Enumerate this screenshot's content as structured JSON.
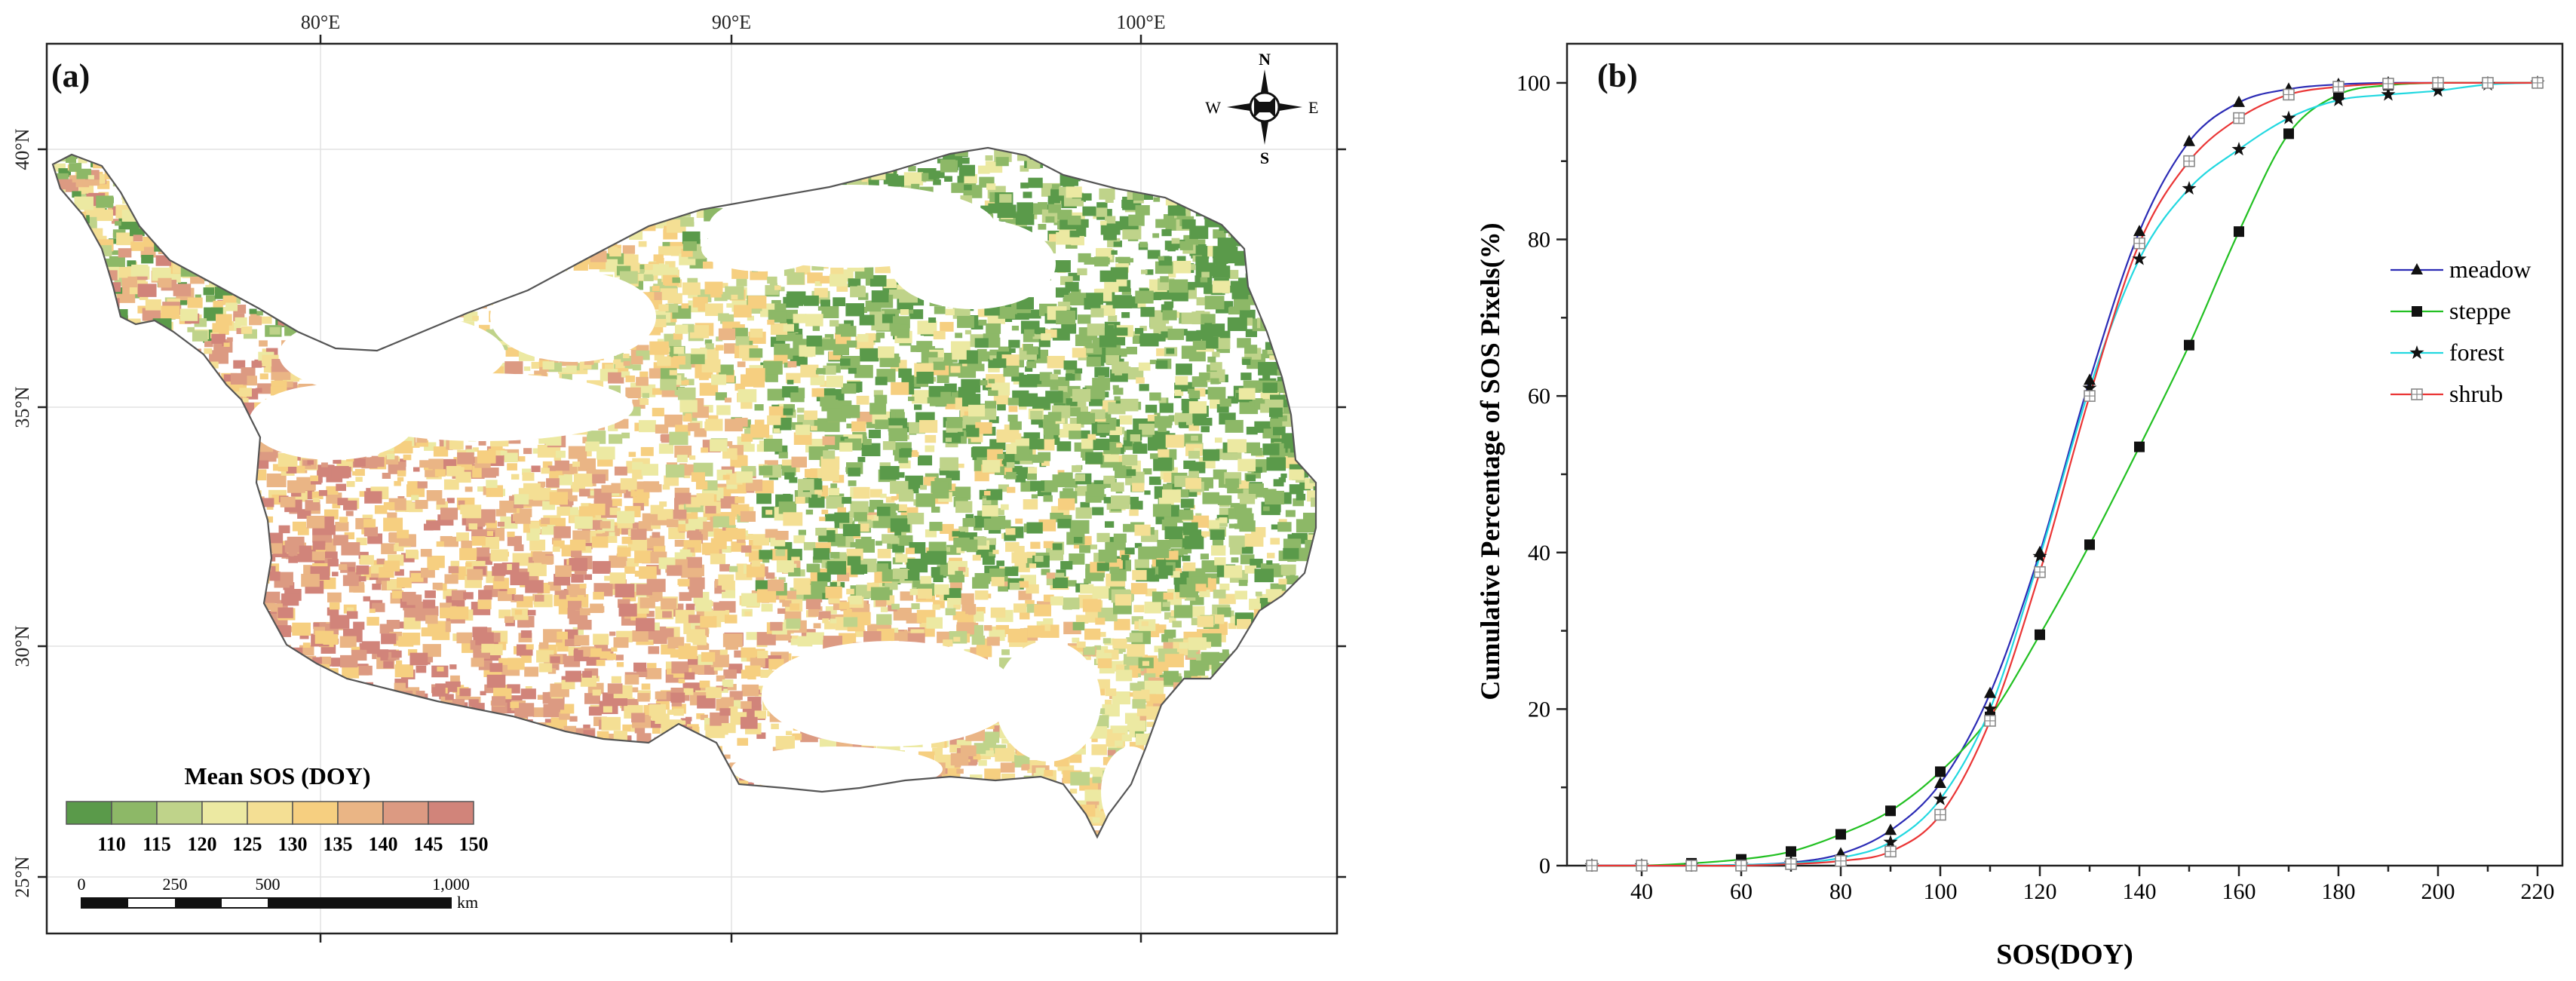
{
  "panel_a": {
    "panel_label": "(a)",
    "lon_labels": [
      "80°E",
      "90°E",
      "100°E"
    ],
    "lat_labels": [
      "40°N",
      "35°N",
      "30°N",
      "25°N"
    ],
    "compass": {
      "n": "N",
      "s": "S",
      "e": "E",
      "w": "W"
    },
    "legend": {
      "title": "Mean SOS (DOY)",
      "ticks": [
        "110",
        "115",
        "120",
        "125",
        "130",
        "135",
        "140",
        "145",
        "150"
      ],
      "colors": [
        "#5a9a4a",
        "#8db867",
        "#bfd38a",
        "#ece9a2",
        "#f4df94",
        "#f6cf80",
        "#eab585",
        "#dc9a82",
        "#d1847a"
      ]
    },
    "scale_bar": {
      "labels": [
        "0",
        "250",
        "500",
        "1,000"
      ],
      "unit": "km"
    }
  },
  "chart_data": {
    "type": "line",
    "panel_label": "(b)",
    "xlabel": "SOS(DOY)",
    "ylabel": "Cumulative Percentage of SOS Pixels(%)",
    "xlim": [
      25,
      225
    ],
    "ylim": [
      0,
      105
    ],
    "x_ticks": [
      40,
      60,
      80,
      100,
      120,
      140,
      160,
      180,
      200,
      220
    ],
    "y_ticks": [
      0,
      20,
      40,
      60,
      80,
      100
    ],
    "legend_position": "right",
    "series": [
      {
        "name": "meadow",
        "color": "#2b2bb5",
        "marker": "triangle",
        "x": [
          30,
          40,
          50,
          60,
          70,
          80,
          90,
          100,
          110,
          120,
          130,
          140,
          150,
          160,
          170,
          180,
          190,
          200,
          210,
          220
        ],
        "y": [
          0,
          0,
          0,
          0.1,
          0.4,
          1.5,
          4.5,
          10.5,
          22,
          40,
          62,
          81,
          92.5,
          97.5,
          99.2,
          99.8,
          100,
          100,
          100,
          100
        ]
      },
      {
        "name": "steppe",
        "color": "#22c022",
        "marker": "square",
        "x": [
          30,
          40,
          50,
          60,
          70,
          80,
          90,
          100,
          110,
          120,
          130,
          140,
          150,
          160,
          170,
          180,
          190,
          200,
          210,
          220
        ],
        "y": [
          0,
          0,
          0.3,
          0.8,
          1.8,
          4,
          7,
          12,
          19,
          29.5,
          41,
          53.5,
          66.5,
          81,
          93.5,
          98.5,
          99.7,
          100,
          100,
          100
        ]
      },
      {
        "name": "forest",
        "color": "#22d8e0",
        "marker": "star",
        "x": [
          30,
          40,
          50,
          60,
          70,
          80,
          90,
          100,
          110,
          120,
          130,
          140,
          150,
          160,
          170,
          180,
          190,
          200,
          210,
          220
        ],
        "y": [
          0,
          0,
          0,
          0.1,
          0.3,
          1,
          3,
          8.5,
          20,
          39.5,
          61,
          77.5,
          86.5,
          91.5,
          95.5,
          97.8,
          98.5,
          99,
          99.8,
          100
        ]
      },
      {
        "name": "shrub",
        "color": "#ea3535",
        "marker": "open-square",
        "x": [
          30,
          40,
          50,
          60,
          70,
          80,
          90,
          100,
          110,
          120,
          130,
          140,
          150,
          160,
          170,
          180,
          190,
          200,
          210,
          220
        ],
        "y": [
          0,
          0,
          0,
          0,
          0.2,
          0.6,
          1.8,
          6.5,
          18.5,
          37.5,
          60,
          79.5,
          90,
          95.5,
          98.5,
          99.5,
          99.9,
          100,
          100,
          100
        ]
      }
    ]
  }
}
